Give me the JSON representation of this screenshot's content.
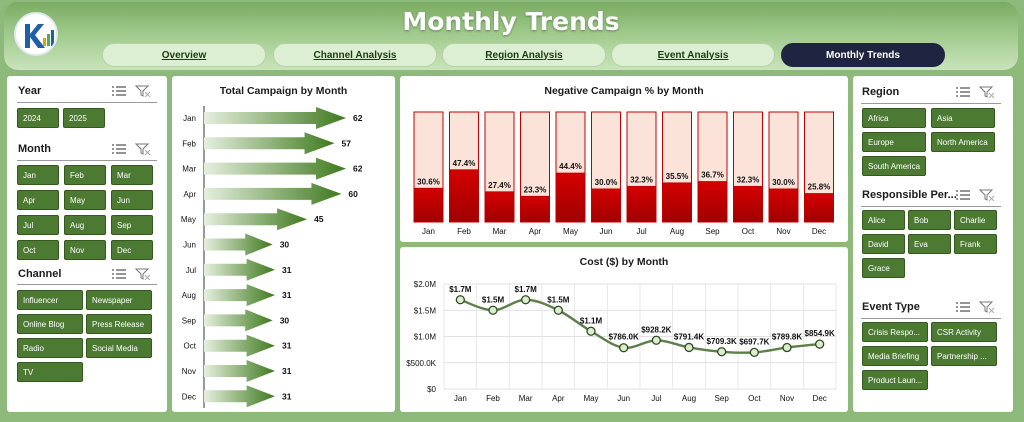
{
  "header": {
    "title": "Monthly Trends"
  },
  "tabs": [
    {
      "label": "Overview"
    },
    {
      "label": "Channel Analysis"
    },
    {
      "label": "Region Analysis"
    },
    {
      "label": "Event Analysis"
    },
    {
      "label": "Monthly Trends",
      "active": true
    }
  ],
  "left_slicers": {
    "year": {
      "title": "Year",
      "items": [
        "2024",
        "2025"
      ]
    },
    "month": {
      "title": "Month",
      "items": [
        "Jan",
        "Feb",
        "Mar",
        "Apr",
        "May",
        "Jun",
        "Jul",
        "Aug",
        "Sep",
        "Oct",
        "Nov",
        "Dec"
      ]
    },
    "channel": {
      "title": "Channel",
      "items": [
        "Influencer",
        "Newspaper",
        "Online Blog",
        "Press Release",
        "Radio",
        "Social Media",
        "TV"
      ]
    }
  },
  "right_slicers": {
    "region": {
      "title": "Region",
      "items": [
        "Africa",
        "Asia",
        "Europe",
        "North America",
        "South America"
      ]
    },
    "person": {
      "title": "Responsible Per...",
      "items": [
        "Alice",
        "Bob",
        "Charlie",
        "David",
        "Eva",
        "Frank",
        "Grace"
      ]
    },
    "event": {
      "title": "Event Type",
      "items": [
        "Crisis Respo...",
        "CSR Activity",
        "Media Briefing",
        "Partnership ...",
        "Product Laun..."
      ]
    }
  },
  "colors": {
    "accent_green": "#4d7a33",
    "arrow_green": "#3f7a1e",
    "bar_red": "#c00000",
    "bar_bg": "#fbe3d9"
  },
  "chart_data": [
    {
      "type": "bar",
      "title": "Total Campaign by Month",
      "orientation": "horizontal",
      "categories": [
        "Jan",
        "Feb",
        "Mar",
        "Apr",
        "May",
        "Jun",
        "Jul",
        "Aug",
        "Sep",
        "Oct",
        "Nov",
        "Dec"
      ],
      "values": [
        62,
        57,
        62,
        60,
        45,
        30,
        31,
        31,
        30,
        31,
        31,
        31
      ]
    },
    {
      "type": "bar",
      "title": "Negative Campaign % by Month",
      "categories": [
        "Jan",
        "Feb",
        "Mar",
        "Apr",
        "May",
        "Jun",
        "Jul",
        "Aug",
        "Sep",
        "Oct",
        "Nov",
        "Dec"
      ],
      "values": [
        30.6,
        47.4,
        27.4,
        23.3,
        44.4,
        30.0,
        32.3,
        35.5,
        36.7,
        32.3,
        30.0,
        25.8
      ],
      "labels": [
        "30.6%",
        "47.4%",
        "27.4%",
        "23.3%",
        "44.4%",
        "30.0%",
        "32.3%",
        "35.5%",
        "36.7%",
        "32.3%",
        "30.0%",
        "25.8%"
      ],
      "ylim": [
        0,
        100
      ]
    },
    {
      "type": "line",
      "title": "Cost ($) by Month",
      "categories": [
        "Jan",
        "Feb",
        "Mar",
        "Apr",
        "May",
        "Jun",
        "Jul",
        "Aug",
        "Sep",
        "Oct",
        "Nov",
        "Dec"
      ],
      "values": [
        1700000,
        1500000,
        1700000,
        1500000,
        1100000,
        786000,
        928200,
        791400,
        709300,
        697700,
        789800,
        854900
      ],
      "labels": [
        "$1.7M",
        "$1.5M",
        "$1.7M",
        "$1.5M",
        "$1.1M",
        "$786.0K",
        "$928.2K",
        "$791.4K",
        "$709.3K",
        "$697.7K",
        "$789.8K",
        "$854.9K"
      ],
      "ylim": [
        0,
        2000000
      ],
      "yticks": [
        0,
        500000,
        1000000,
        1500000,
        2000000
      ],
      "ytick_labels": [
        "$0",
        "$500.0K",
        "$1.0M",
        "$1.5M",
        "$2.0M"
      ],
      "grid": true
    }
  ]
}
